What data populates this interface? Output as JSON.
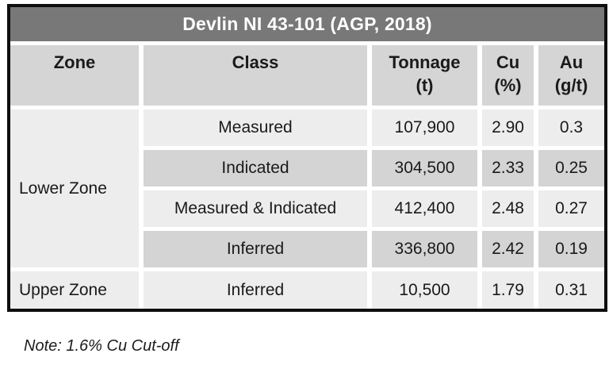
{
  "table": {
    "title": "Devlin NI 43-101 (AGP, 2018)",
    "headers": {
      "zone": "Zone",
      "class": "Class",
      "tonnage": "Tonnage\n(t)",
      "cu": "Cu\n(%)",
      "au": "Au\n(g/t)"
    },
    "zones": {
      "lower": "Lower Zone",
      "upper": "Upper Zone"
    },
    "rows": [
      {
        "class": "Measured",
        "tonnage": "107,900",
        "cu": "2.90",
        "au": "0.3"
      },
      {
        "class": "Indicated",
        "tonnage": "304,500",
        "cu": "2.33",
        "au": "0.25"
      },
      {
        "class": "Measured & Indicated",
        "tonnage": "412,400",
        "cu": "2.48",
        "au": "0.27"
      },
      {
        "class": "Inferred",
        "tonnage": "336,800",
        "cu": "2.42",
        "au": "0.19"
      },
      {
        "class": "Inferred",
        "tonnage": "10,500",
        "cu": "1.79",
        "au": "0.31"
      }
    ]
  },
  "note": "Note: 1.6% Cu Cut-off",
  "colors": {
    "title_bar": "#787878",
    "header_cell": "#d5d5d5",
    "row_light": "#ededed",
    "row_dark": "#d4d4d4",
    "border": "#0e0e0e",
    "gap": "#ffffff"
  },
  "chart_data": {
    "type": "table",
    "title": "Devlin NI 43-101 (AGP, 2018)",
    "columns": [
      "Zone",
      "Class",
      "Tonnage (t)",
      "Cu (%)",
      "Au (g/t)"
    ],
    "rows": [
      [
        "Lower Zone",
        "Measured",
        107900,
        2.9,
        0.3
      ],
      [
        "Lower Zone",
        "Indicated",
        304500,
        2.33,
        0.25
      ],
      [
        "Lower Zone",
        "Measured & Indicated",
        412400,
        2.48,
        0.27
      ],
      [
        "Lower Zone",
        "Inferred",
        336800,
        2.42,
        0.19
      ],
      [
        "Upper Zone",
        "Inferred",
        10500,
        1.79,
        0.31
      ]
    ],
    "footnote": "Note: 1.6% Cu Cut-off"
  }
}
